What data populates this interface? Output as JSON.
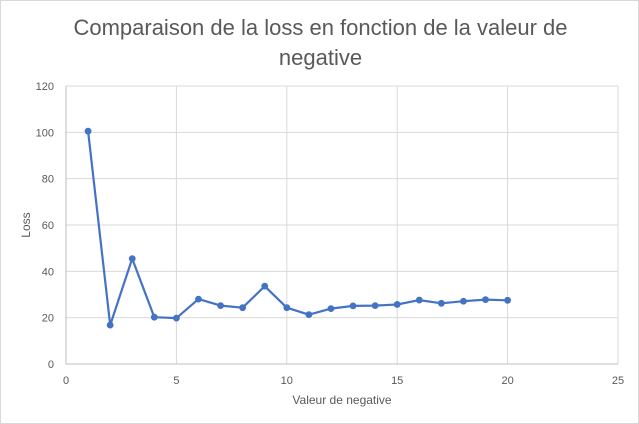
{
  "chart_data": {
    "type": "scatter",
    "title_line1": "Comparaison de la loss en fonction de la valeur de",
    "title_line2": "negative",
    "xlabel": "Valeur de negative",
    "ylabel": "Loss",
    "xlim": [
      0,
      25
    ],
    "ylim": [
      0,
      120
    ],
    "x_ticks": [
      0,
      5,
      10,
      15,
      20,
      25
    ],
    "y_ticks": [
      0,
      20,
      40,
      60,
      80,
      100,
      120
    ],
    "grid": true,
    "legend": "none",
    "series_color": "#4472c4",
    "series": [
      {
        "x": [
          1,
          2,
          3,
          4,
          5,
          6,
          7,
          8,
          9,
          10,
          11,
          12,
          13,
          14,
          15,
          16,
          17,
          18,
          19,
          20
        ],
        "y": [
          100.5,
          16.8,
          45.5,
          20.2,
          19.8,
          28.0,
          25.2,
          24.3,
          33.6,
          24.3,
          21.3,
          23.9,
          25.1,
          25.2,
          25.7,
          27.6,
          26.2,
          27.1,
          27.8,
          27.5
        ]
      }
    ]
  }
}
